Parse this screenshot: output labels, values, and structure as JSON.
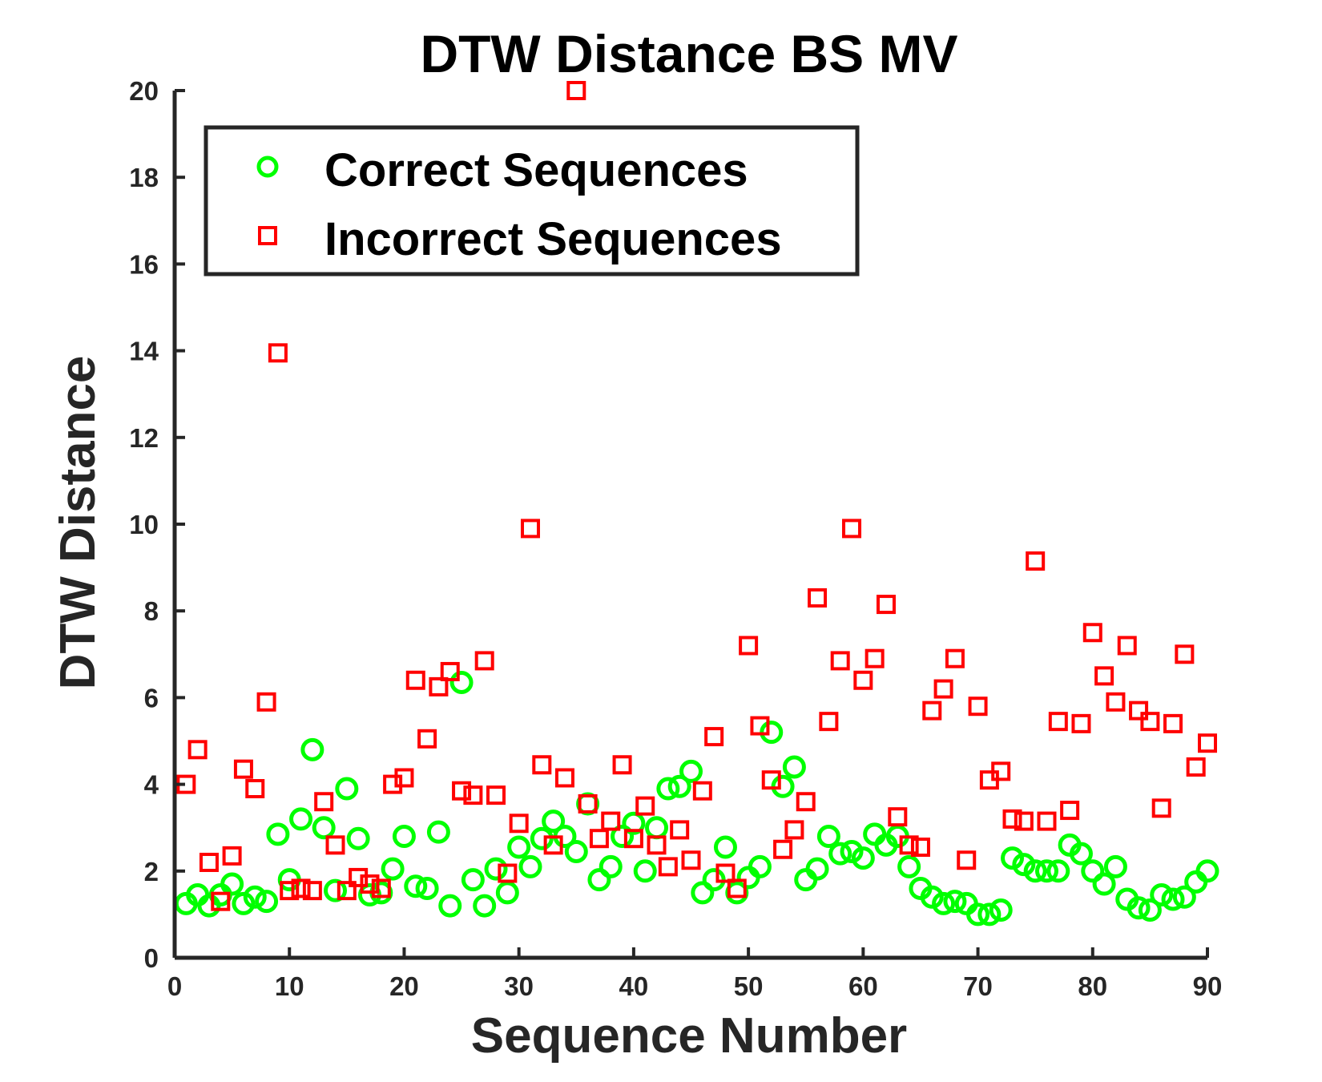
{
  "chart_data": {
    "type": "scatter",
    "title": "DTW Distance BS MV",
    "xlabel": "Sequence Number",
    "ylabel": "DTW Distance",
    "xlim": [
      0,
      90
    ],
    "ylim": [
      0,
      20
    ],
    "xticks": [
      "0",
      "10",
      "20",
      "30",
      "40",
      "50",
      "60",
      "70",
      "80",
      "90"
    ],
    "yticks": [
      "0",
      "2",
      "4",
      "6",
      "8",
      "10",
      "12",
      "14",
      "16",
      "18",
      "20"
    ],
    "grid": false,
    "legend_position": "top-left",
    "series": [
      {
        "name": "Correct Sequences",
        "marker": "circle",
        "color": "#00ff00",
        "x": [
          1,
          2,
          3,
          4,
          5,
          6,
          7,
          8,
          9,
          10,
          11,
          12,
          13,
          14,
          15,
          16,
          17,
          18,
          19,
          20,
          21,
          22,
          23,
          24,
          25,
          26,
          27,
          28,
          29,
          30,
          31,
          32,
          33,
          34,
          35,
          36,
          37,
          38,
          39,
          40,
          41,
          42,
          43,
          44,
          45,
          46,
          47,
          48,
          49,
          50,
          51,
          52,
          53,
          54,
          55,
          56,
          57,
          58,
          59,
          60,
          61,
          62,
          63,
          64,
          65,
          66,
          67,
          68,
          69,
          70,
          71,
          72,
          73,
          74,
          75,
          76,
          77,
          78,
          79,
          80,
          81,
          82,
          83,
          84,
          85,
          86,
          87,
          88,
          89,
          90
        ],
        "y": [
          1.25,
          1.45,
          1.2,
          1.45,
          1.7,
          1.25,
          1.4,
          1.3,
          2.85,
          1.8,
          3.2,
          4.8,
          3.0,
          1.55,
          3.9,
          2.75,
          1.45,
          1.5,
          2.05,
          2.8,
          1.65,
          1.6,
          2.9,
          1.2,
          6.35,
          1.8,
          1.2,
          2.05,
          1.5,
          2.55,
          2.1,
          2.75,
          3.15,
          2.8,
          2.45,
          3.55,
          1.8,
          2.1,
          2.8,
          3.1,
          2.0,
          3.0,
          3.9,
          3.95,
          4.3,
          1.5,
          1.8,
          2.55,
          1.5,
          1.85,
          2.1,
          5.2,
          3.95,
          4.4,
          1.8,
          2.05,
          2.8,
          2.4,
          2.45,
          2.3,
          2.85,
          2.6,
          2.8,
          2.1,
          1.6,
          1.4,
          1.25,
          1.3,
          1.25,
          1.0,
          1.0,
          1.1,
          2.3,
          2.15,
          2.0,
          2.0,
          2.0,
          2.6,
          2.4,
          2.0,
          1.7,
          2.1,
          1.35,
          1.15,
          1.1,
          1.45,
          1.35,
          1.4,
          1.75,
          2.0
        ]
      },
      {
        "name": "Incorrect Sequences",
        "marker": "square",
        "color": "#ff0000",
        "x": [
          1,
          2,
          3,
          4,
          5,
          6,
          7,
          8,
          9,
          10,
          11,
          12,
          13,
          14,
          15,
          16,
          17,
          18,
          19,
          20,
          21,
          22,
          23,
          24,
          25,
          26,
          27,
          28,
          29,
          30,
          31,
          32,
          33,
          34,
          35,
          36,
          37,
          38,
          39,
          40,
          41,
          42,
          43,
          44,
          45,
          46,
          47,
          48,
          49,
          50,
          51,
          52,
          53,
          54,
          55,
          56,
          57,
          58,
          59,
          60,
          61,
          62,
          63,
          64,
          65,
          66,
          67,
          68,
          69,
          70,
          71,
          72,
          73,
          74,
          75,
          76,
          77,
          78,
          79,
          80,
          81,
          82,
          83,
          84,
          85,
          86,
          87,
          88,
          89,
          90
        ],
        "y": [
          4.0,
          4.8,
          2.2,
          1.3,
          2.35,
          4.35,
          3.9,
          5.9,
          13.95,
          1.55,
          1.6,
          1.55,
          3.6,
          2.6,
          1.55,
          1.85,
          1.7,
          1.6,
          4.0,
          4.15,
          6.4,
          5.05,
          6.25,
          6.6,
          3.85,
          3.75,
          6.85,
          3.75,
          1.95,
          3.1,
          9.9,
          4.45,
          2.6,
          4.15,
          20.0,
          3.55,
          2.75,
          3.15,
          4.45,
          2.75,
          3.5,
          2.6,
          2.1,
          2.95,
          2.25,
          3.85,
          5.1,
          1.95,
          1.6,
          7.2,
          5.35,
          4.1,
          2.5,
          2.95,
          3.6,
          8.3,
          5.45,
          6.85,
          9.9,
          6.4,
          6.9,
          8.15,
          3.25,
          2.6,
          2.55,
          5.7,
          6.2,
          6.9,
          2.25,
          5.8,
          4.1,
          4.3,
          3.2,
          3.15,
          9.15,
          3.15,
          5.45,
          3.4,
          5.4,
          7.5,
          6.5,
          5.9,
          7.2,
          5.7,
          5.45,
          3.45,
          5.4,
          7.0,
          4.4,
          4.95
        ]
      }
    ]
  }
}
